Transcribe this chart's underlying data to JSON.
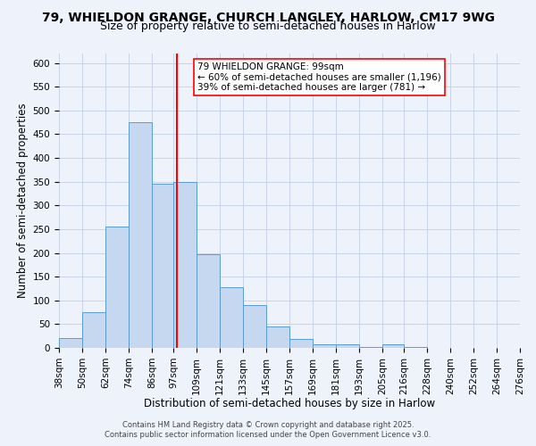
{
  "title": "79, WHIELDON GRANGE, CHURCH LANGLEY, HARLOW, CM17 9WG",
  "subtitle": "Size of property relative to semi-detached houses in Harlow",
  "xlabel": "Distribution of semi-detached houses by size in Harlow",
  "ylabel": "Number of semi-detached properties",
  "bin_labels": [
    "38sqm",
    "50sqm",
    "62sqm",
    "74sqm",
    "86sqm",
    "97sqm",
    "109sqm",
    "121sqm",
    "133sqm",
    "145sqm",
    "157sqm",
    "169sqm",
    "181sqm",
    "193sqm",
    "205sqm",
    "216sqm",
    "228sqm",
    "240sqm",
    "252sqm",
    "264sqm",
    "276sqm"
  ],
  "bin_edges": [
    38,
    50,
    62,
    74,
    86,
    97,
    109,
    121,
    133,
    145,
    157,
    169,
    181,
    193,
    205,
    216,
    228,
    240,
    252,
    264,
    276
  ],
  "bar_heights": [
    20,
    75,
    255,
    475,
    345,
    350,
    198,
    127,
    90,
    45,
    18,
    7,
    7,
    2,
    7,
    2,
    0,
    0,
    0,
    0
  ],
  "bar_color": "#c5d8f0",
  "bar_edge_color": "#5B9BD5",
  "vline_x": 99,
  "vline_color": "red",
  "ylim": [
    0,
    620
  ],
  "yticks": [
    0,
    50,
    100,
    150,
    200,
    250,
    300,
    350,
    400,
    450,
    500,
    550,
    600
  ],
  "annotation_title": "79 WHIELDON GRANGE: 99sqm",
  "annotation_line1": "← 60% of semi-detached houses are smaller (1,196)",
  "annotation_line2": "39% of semi-detached houses are larger (781) →",
  "footer1": "Contains HM Land Registry data © Crown copyright and database right 2025.",
  "footer2": "Contains public sector information licensed under the Open Government Licence v3.0.",
  "background_color": "#eef2fb",
  "grid_color": "#c8d4e8",
  "title_fontsize": 10,
  "subtitle_fontsize": 9,
  "axis_fontsize": 8.5,
  "tick_fontsize": 7.5,
  "annotation_fontsize": 7.5,
  "footer_fontsize": 6
}
